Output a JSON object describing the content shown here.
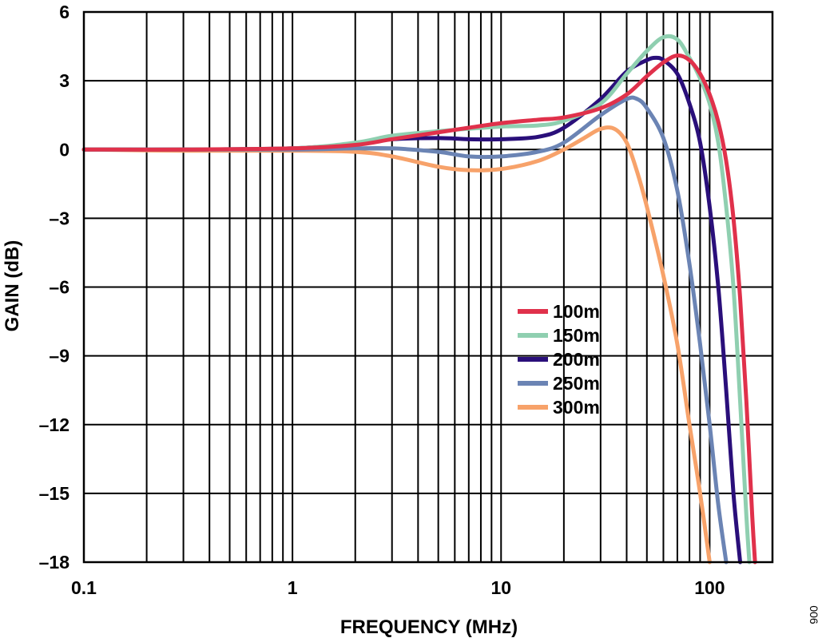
{
  "chart_data": {
    "type": "line",
    "xlabel": "FREQUENCY (MHz)",
    "ylabel": "GAIN (dB)",
    "x_scale": "log",
    "xlim": [
      0.1,
      200
    ],
    "ylim": [
      -18,
      6
    ],
    "x_ticks": [
      0.1,
      1,
      10,
      100
    ],
    "x_tick_labels": [
      "0.1",
      "1",
      "10",
      "100"
    ],
    "y_ticks": [
      6,
      3,
      0,
      -3,
      -6,
      -9,
      -12,
      -15,
      -18
    ],
    "y_tick_labels": [
      "6",
      "3",
      "0",
      "–3",
      "–6",
      "–9",
      "–12",
      "–15",
      "–18"
    ],
    "grid": true,
    "legend_position": "center-right",
    "figure_id": "006",
    "series": [
      {
        "name": "100m",
        "color": "#e0314b",
        "points": [
          [
            0.1,
            0
          ],
          [
            0.3,
            0
          ],
          [
            1,
            0.05
          ],
          [
            2,
            0.2
          ],
          [
            3,
            0.45
          ],
          [
            5,
            0.75
          ],
          [
            7,
            0.95
          ],
          [
            10,
            1.15
          ],
          [
            15,
            1.3
          ],
          [
            20,
            1.4
          ],
          [
            30,
            1.8
          ],
          [
            40,
            2.4
          ],
          [
            50,
            3.2
          ],
          [
            60,
            3.8
          ],
          [
            70,
            4.1
          ],
          [
            80,
            3.9
          ],
          [
            90,
            3.3
          ],
          [
            100,
            2.4
          ],
          [
            110,
            1.2
          ],
          [
            120,
            -0.5
          ],
          [
            130,
            -3
          ],
          [
            140,
            -6.5
          ],
          [
            150,
            -11
          ],
          [
            160,
            -16
          ],
          [
            165,
            -18
          ]
        ]
      },
      {
        "name": "150m",
        "color": "#8fcfb0",
        "points": [
          [
            0.1,
            0
          ],
          [
            0.3,
            0
          ],
          [
            1,
            0.05
          ],
          [
            2,
            0.3
          ],
          [
            3,
            0.6
          ],
          [
            5,
            0.8
          ],
          [
            10,
            1.0
          ],
          [
            15,
            1.05
          ],
          [
            20,
            1.25
          ],
          [
            30,
            2.0
          ],
          [
            40,
            3.3
          ],
          [
            50,
            4.3
          ],
          [
            60,
            4.9
          ],
          [
            70,
            4.8
          ],
          [
            80,
            4.0
          ],
          [
            90,
            3.1
          ],
          [
            100,
            2.0
          ],
          [
            110,
            0.3
          ],
          [
            120,
            -2.5
          ],
          [
            130,
            -6
          ],
          [
            140,
            -11
          ],
          [
            150,
            -16
          ],
          [
            155,
            -18
          ]
        ]
      },
      {
        "name": "200m",
        "color": "#2a0f7a",
        "points": [
          [
            0.1,
            0
          ],
          [
            0.3,
            0
          ],
          [
            1,
            0.05
          ],
          [
            2,
            0.25
          ],
          [
            3,
            0.45
          ],
          [
            5,
            0.5
          ],
          [
            7,
            0.45
          ],
          [
            10,
            0.45
          ],
          [
            15,
            0.55
          ],
          [
            20,
            0.95
          ],
          [
            30,
            2.2
          ],
          [
            40,
            3.4
          ],
          [
            50,
            3.9
          ],
          [
            55,
            4.0
          ],
          [
            60,
            3.9
          ],
          [
            70,
            3.3
          ],
          [
            80,
            2.0
          ],
          [
            90,
            0.3
          ],
          [
            100,
            -2.5
          ],
          [
            110,
            -6
          ],
          [
            120,
            -10.5
          ],
          [
            130,
            -15
          ],
          [
            140,
            -18
          ]
        ]
      },
      {
        "name": "250m",
        "color": "#6b84b4",
        "points": [
          [
            0.1,
            0
          ],
          [
            0.3,
            0
          ],
          [
            1,
            0
          ],
          [
            2,
            0.05
          ],
          [
            3,
            0.05
          ],
          [
            5,
            -0.1
          ],
          [
            7,
            -0.3
          ],
          [
            10,
            -0.3
          ],
          [
            15,
            -0.1
          ],
          [
            20,
            0.3
          ],
          [
            30,
            1.5
          ],
          [
            40,
            2.2
          ],
          [
            45,
            2.2
          ],
          [
            50,
            1.8
          ],
          [
            60,
            0.5
          ],
          [
            70,
            -1.8
          ],
          [
            80,
            -5
          ],
          [
            90,
            -8.5
          ],
          [
            100,
            -12
          ],
          [
            110,
            -15.5
          ],
          [
            120,
            -18
          ]
        ]
      },
      {
        "name": "300m",
        "color": "#f7a26a",
        "points": [
          [
            0.1,
            0
          ],
          [
            0.3,
            -0.05
          ],
          [
            1,
            -0.05
          ],
          [
            2,
            -0.1
          ],
          [
            3,
            -0.3
          ],
          [
            5,
            -0.75
          ],
          [
            7,
            -0.9
          ],
          [
            10,
            -0.85
          ],
          [
            15,
            -0.5
          ],
          [
            20,
            0
          ],
          [
            25,
            0.5
          ],
          [
            30,
            0.9
          ],
          [
            35,
            0.9
          ],
          [
            40,
            0.3
          ],
          [
            45,
            -1
          ],
          [
            50,
            -2.5
          ],
          [
            60,
            -5.5
          ],
          [
            70,
            -8.5
          ],
          [
            80,
            -12
          ],
          [
            90,
            -15
          ],
          [
            100,
            -18
          ]
        ]
      }
    ]
  }
}
